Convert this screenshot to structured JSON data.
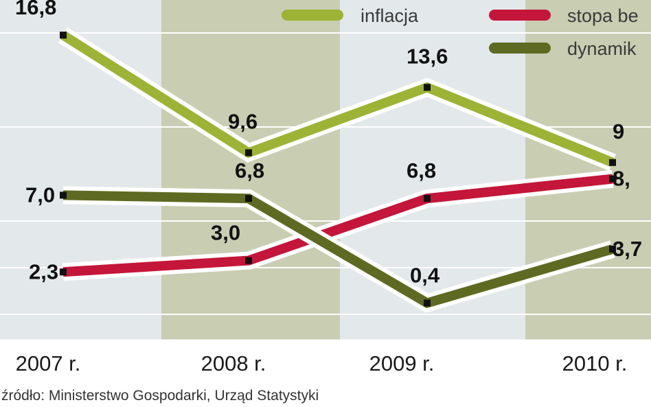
{
  "chart_data": {
    "type": "line",
    "categories": [
      "2007 r.",
      "2008 r.",
      "2009 r.",
      "2010 r."
    ],
    "series": [
      {
        "name": "inflacja",
        "values": [
          16.8,
          9.6,
          13.6,
          9.0
        ],
        "labels": [
          "16,8",
          "9,6",
          "13,6",
          "9"
        ],
        "color": "#9cb335"
      },
      {
        "name": "stopa be",
        "values": [
          2.3,
          3.0,
          6.8,
          8.0
        ],
        "labels": [
          "2,3",
          "3,0",
          "6,8",
          "8,"
        ],
        "color": "#c4163a"
      },
      {
        "name": "dynamik",
        "values": [
          7.0,
          6.8,
          0.4,
          3.7
        ],
        "labels": [
          "7,0",
          "6,8",
          "0,4",
          "3,7"
        ],
        "color": "#5e6a22"
      }
    ],
    "grid": true,
    "legend": "top-right",
    "source": "źródło: Ministerstwo Gospodarki, Urząd Statystyki"
  }
}
